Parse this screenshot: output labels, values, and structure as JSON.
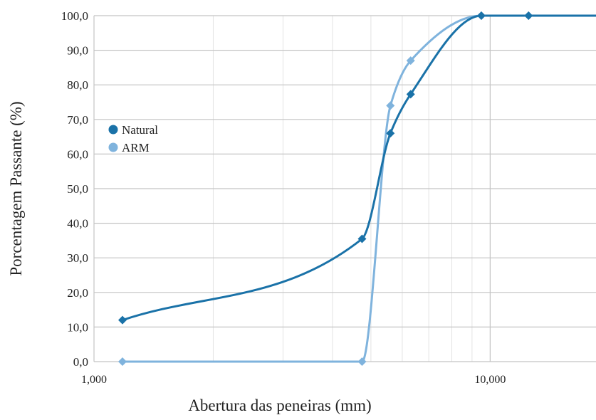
{
  "chart_data": {
    "type": "line",
    "title": "",
    "xlabel": "Abertura das peneiras (mm)",
    "ylabel": "Porcentagem Passante (%)",
    "x_scale": "log",
    "xlim": [
      1.0,
      18.5
    ],
    "ylim": [
      0,
      100
    ],
    "x_ticks": [
      1.0,
      10.0
    ],
    "x_tick_labels": [
      "1,000",
      "10,000"
    ],
    "y_ticks": [
      0,
      10,
      20,
      30,
      40,
      50,
      60,
      70,
      80,
      90,
      100
    ],
    "y_tick_labels": [
      "0,0",
      "10,0",
      "20,0",
      "30,0",
      "40,0",
      "50,0",
      "60,0",
      "70,0",
      "80,0",
      "90,0",
      "100,0"
    ],
    "grid": true,
    "legend_position": "left-middle",
    "series": [
      {
        "name": "Natural",
        "color": "#1a72a8",
        "marker": "diamond",
        "x": [
          1.18,
          4.75,
          5.6,
          6.3,
          9.5,
          12.5,
          19.0
        ],
        "y": [
          12.0,
          35.5,
          66.0,
          77.3,
          100.0,
          100.0,
          100.0
        ]
      },
      {
        "name": "ARM",
        "color": "#7fb3dd",
        "marker": "diamond",
        "x": [
          1.18,
          4.75,
          5.6,
          6.3,
          9.5,
          12.5,
          19.0
        ],
        "y": [
          0.0,
          0.0,
          74.0,
          87.0,
          100.0,
          100.0,
          100.0
        ]
      }
    ]
  }
}
